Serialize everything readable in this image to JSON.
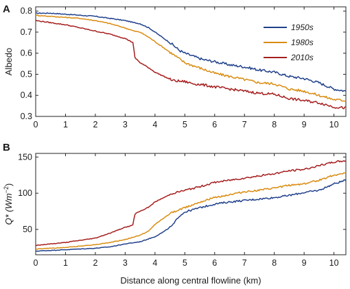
{
  "chart_data": [
    {
      "panel": "A",
      "type": "line",
      "ylabel": "Albedo",
      "xlim": [
        0,
        10.4
      ],
      "ylim": [
        0.3,
        0.82
      ],
      "xticks": [
        "0",
        "1",
        "2",
        "3",
        "4",
        "5",
        "6",
        "7",
        "8",
        "9",
        "10"
      ],
      "yticks": [
        "0.3",
        "0.4",
        "0.5",
        "0.6",
        "0.7",
        "0.8"
      ],
      "legend": {
        "position": "top-right"
      },
      "series": [
        {
          "name": "1950s",
          "color": "#1f3f8a",
          "x": [
            0,
            0.5,
            1,
            1.5,
            2,
            2.5,
            3,
            3.3,
            3.5,
            3.8,
            4,
            4.3,
            4.6,
            4.8,
            5,
            5.3,
            5.6,
            6,
            6.5,
            7,
            7.5,
            8,
            8.5,
            9,
            9.5,
            10,
            10.4
          ],
          "y": [
            0.79,
            0.79,
            0.785,
            0.78,
            0.775,
            0.765,
            0.755,
            0.745,
            0.74,
            0.72,
            0.7,
            0.67,
            0.64,
            0.615,
            0.6,
            0.585,
            0.57,
            0.56,
            0.545,
            0.535,
            0.52,
            0.51,
            0.49,
            0.48,
            0.46,
            0.43,
            0.42
          ]
        },
        {
          "name": "1980s",
          "color": "#d98b0f",
          "x": [
            0,
            0.5,
            1,
            1.5,
            2,
            2.5,
            3,
            3.3,
            3.5,
            3.8,
            4,
            4.3,
            4.6,
            4.8,
            5,
            5.3,
            5.6,
            6,
            6.5,
            7,
            7.5,
            8,
            8.5,
            9,
            9.5,
            10,
            10.4
          ],
          "y": [
            0.78,
            0.775,
            0.77,
            0.765,
            0.755,
            0.74,
            0.72,
            0.705,
            0.7,
            0.675,
            0.655,
            0.625,
            0.595,
            0.575,
            0.555,
            0.54,
            0.525,
            0.505,
            0.49,
            0.475,
            0.46,
            0.455,
            0.43,
            0.42,
            0.4,
            0.38,
            0.375
          ]
        },
        {
          "name": "2010s",
          "color": "#a51d1d",
          "x": [
            0,
            0.5,
            1,
            1.5,
            2,
            2.5,
            3,
            3.2,
            3.28,
            3.3,
            3.32,
            3.5,
            3.8,
            4,
            4.3,
            4.6,
            5,
            5.3,
            5.6,
            6,
            6.5,
            7,
            7.5,
            8,
            8.5,
            9,
            9.5,
            10,
            10.4
          ],
          "y": [
            0.755,
            0.745,
            0.735,
            0.72,
            0.705,
            0.69,
            0.67,
            0.655,
            0.65,
            0.6,
            0.58,
            0.555,
            0.53,
            0.51,
            0.49,
            0.47,
            0.465,
            0.455,
            0.45,
            0.44,
            0.43,
            0.42,
            0.41,
            0.405,
            0.385,
            0.375,
            0.365,
            0.345,
            0.34
          ]
        }
      ]
    },
    {
      "panel": "B",
      "type": "line",
      "ylabel_main": "Q* (Wm",
      "ylabel_sup": "−2",
      "ylabel_close": ")",
      "xlabel": "Distance along central flowline (km)",
      "xlim": [
        0,
        10.4
      ],
      "ylim": [
        15,
        155
      ],
      "xticks": [
        "0",
        "1",
        "2",
        "3",
        "4",
        "5",
        "6",
        "7",
        "8",
        "9",
        "10"
      ],
      "yticks": [
        "50",
        "100",
        "150"
      ],
      "series": [
        {
          "name": "1950s",
          "color": "#1f3f8a",
          "x": [
            0,
            0.5,
            1,
            1.5,
            2,
            2.5,
            3,
            3.5,
            4,
            4.3,
            4.6,
            4.8,
            5,
            5.5,
            6,
            6.5,
            7,
            7.5,
            8,
            8.5,
            9,
            9.5,
            10,
            10.4
          ],
          "y": [
            20,
            21,
            22,
            23,
            24,
            26,
            30,
            33,
            40,
            47,
            56,
            68,
            74,
            80,
            85,
            88,
            90,
            92,
            94,
            97,
            101,
            104,
            113,
            118
          ]
        },
        {
          "name": "1980s",
          "color": "#d98b0f",
          "x": [
            0,
            0.5,
            1,
            1.5,
            2,
            2.5,
            3,
            3.5,
            3.8,
            4,
            4.3,
            4.6,
            5,
            5.5,
            6,
            6.5,
            7,
            7.5,
            8,
            8.5,
            9,
            9.5,
            10,
            10.4
          ],
          "y": [
            23,
            24,
            25,
            27,
            29,
            32,
            36,
            42,
            48,
            57,
            66,
            74,
            80,
            88,
            94,
            98,
            102,
            104,
            107,
            111,
            113,
            118,
            125,
            128
          ]
        },
        {
          "name": "2010s",
          "color": "#a51d1d",
          "x": [
            0,
            0.5,
            1,
            1.5,
            2,
            2.5,
            3,
            3.2,
            3.28,
            3.3,
            3.35,
            3.5,
            3.8,
            4,
            4.3,
            4.6,
            5,
            5.5,
            6,
            6.5,
            7,
            7.5,
            8,
            8.5,
            9,
            9.5,
            10,
            10.4
          ],
          "y": [
            28,
            30,
            32,
            35,
            38,
            45,
            53,
            55,
            57,
            68,
            72,
            75,
            81,
            88,
            94,
            100,
            104,
            109,
            115,
            118,
            121,
            124,
            127,
            131,
            133,
            138,
            143,
            145
          ]
        }
      ]
    }
  ]
}
